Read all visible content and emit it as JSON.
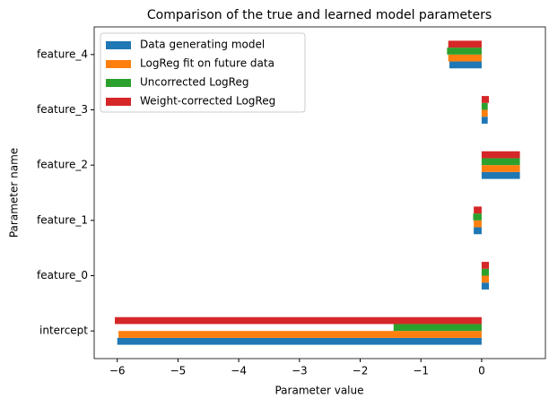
{
  "chart_data": {
    "type": "barh",
    "title": "Comparison of the true and learned model parameters",
    "xlabel": "Parameter value",
    "ylabel": "Parameter name",
    "categories": [
      "intercept",
      "feature_0",
      "feature_1",
      "feature_2",
      "feature_3",
      "feature_4"
    ],
    "series": [
      {
        "name": "Data generating model",
        "color": "#1f77b4",
        "values": [
          -6.0,
          0.12,
          -0.13,
          0.63,
          0.1,
          -0.53
        ]
      },
      {
        "name": "LogReg fit on future data",
        "color": "#ff7f0e",
        "values": [
          -5.98,
          0.12,
          -0.13,
          0.63,
          0.1,
          -0.55
        ]
      },
      {
        "name": "Uncorrected LogReg",
        "color": "#2ca02c",
        "values": [
          -1.45,
          0.12,
          -0.14,
          0.63,
          0.1,
          -0.57
        ]
      },
      {
        "name": "Weight-corrected LogReg",
        "color": "#d62728",
        "values": [
          -6.04,
          0.12,
          -0.13,
          0.63,
          0.12,
          -0.55
        ]
      }
    ],
    "xlim": [
      -6.38,
      1.05
    ],
    "xticks": [
      {
        "value": -6,
        "label": "−6"
      },
      {
        "value": -5,
        "label": "−5"
      },
      {
        "value": -4,
        "label": "−4"
      },
      {
        "value": -3,
        "label": "−3"
      },
      {
        "value": -2,
        "label": "−2"
      },
      {
        "value": -1,
        "label": "−1"
      },
      0
    ],
    "legend": "upper left"
  }
}
